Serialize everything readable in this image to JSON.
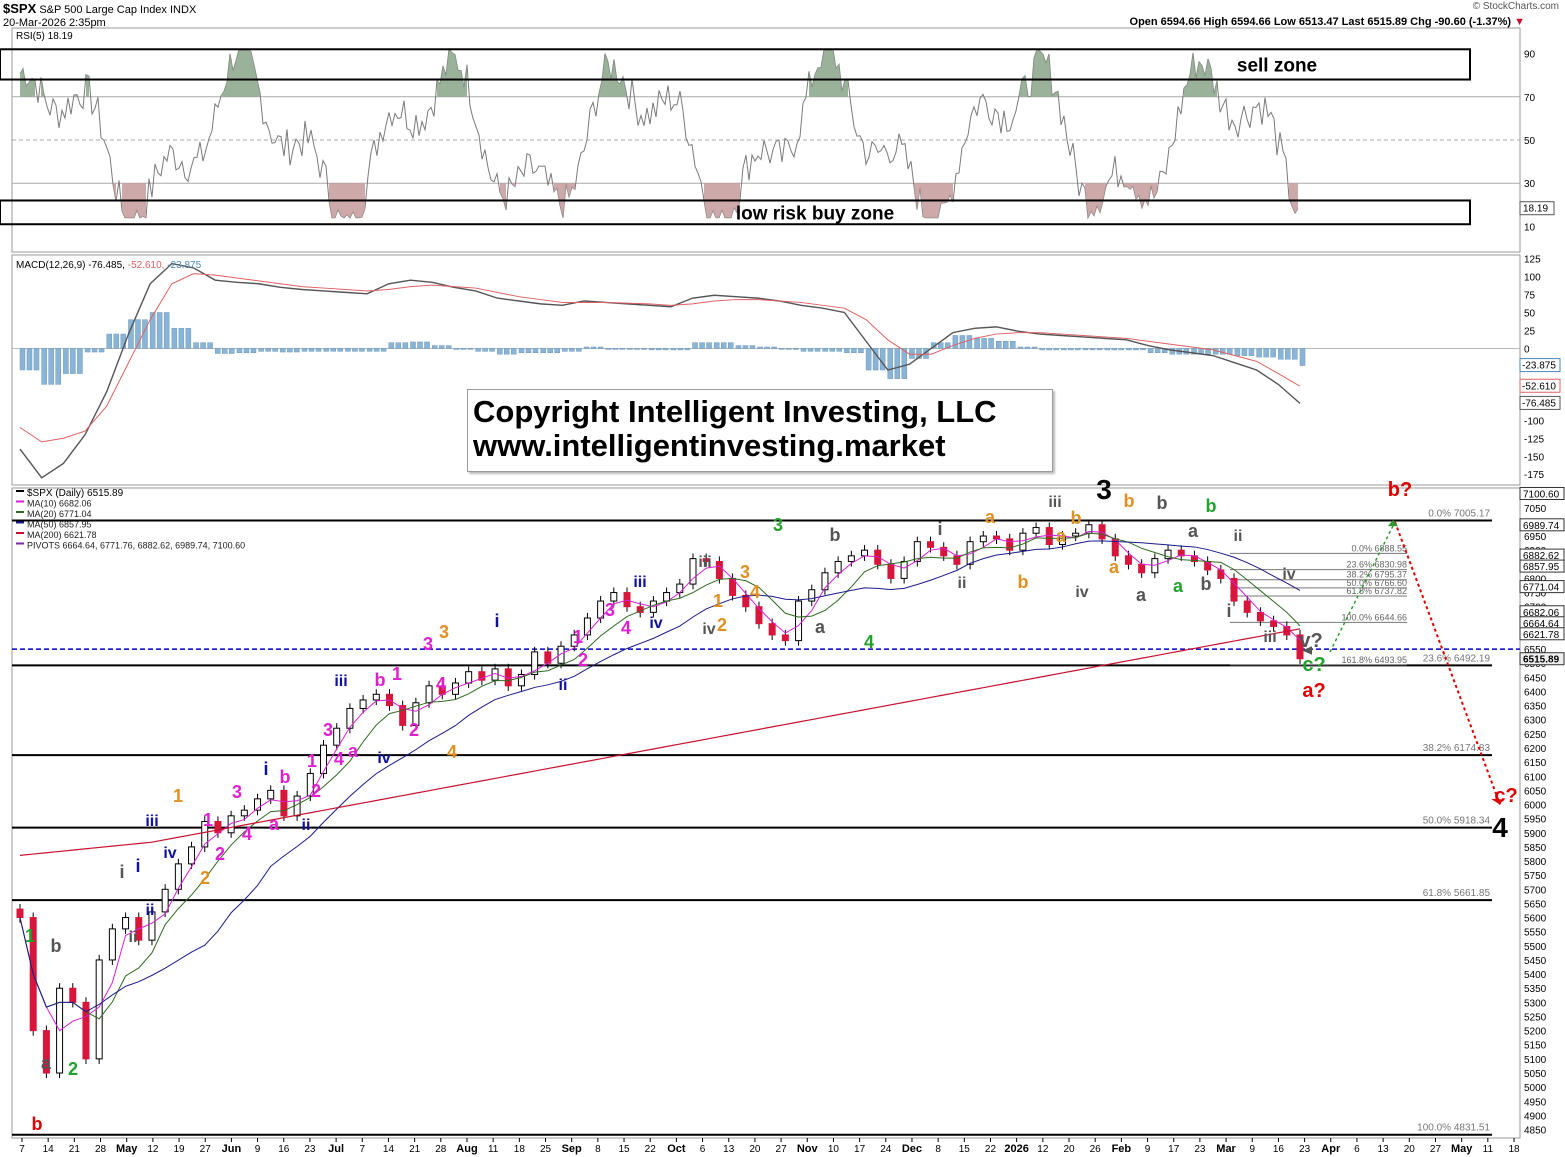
{
  "header": {
    "symbol": "$SPX",
    "name": "S&P 500 Large Cap Index",
    "exchange": "INDX",
    "date": "20-Mar-2026 2:35pm",
    "credit": "© StockCharts.com",
    "quote": "Open 6594.66  High 6594.66  Low 6513.47  Last 6515.89  Chg -90.60 (-1.37%)",
    "quote_icon": "down-triangle-icon"
  },
  "copyright": {
    "line1": "Copyright Intelligent Investing, LLC",
    "line2": "www.intelligentinvesting.market"
  },
  "colors": {
    "up": "#ffffff",
    "down": "#d8153a",
    "wick": "#000000",
    "ma10": "#d61fd6",
    "ma20": "#2e6b1e",
    "ma50": "#1a1a8c",
    "ma200": "#c8102e",
    "macd": "#555555",
    "signal": "#e06060",
    "histogram": "#8ab4d6",
    "rsi": "#7a7a7a",
    "rsi_high_fill": "#8fa88f",
    "rsi_low_fill": "#c8a0a0",
    "pivot_line": "#0000cc"
  },
  "chart_data": [
    {
      "type": "line",
      "title": "RSI(5) 18.19",
      "ylim": [
        0,
        100
      ],
      "y_ticks": [
        10,
        30,
        50,
        70,
        90
      ],
      "guide_lines": [
        70,
        50,
        30
      ],
      "last_value_label": "18.19",
      "zones": [
        {
          "label": "sell zone",
          "range": [
            78,
            92
          ]
        },
        {
          "label": "low risk buy zone",
          "range": [
            11,
            22
          ]
        }
      ]
    },
    {
      "type": "line",
      "title": "MACD(12,26,9)",
      "legend": {
        "macd": "-76.485",
        "signal": "-52.610",
        "hist": "-23.875"
      },
      "ylim": [
        -190,
        130
      ],
      "y_ticks": [
        125,
        100,
        75,
        50,
        25,
        0,
        -25,
        -50,
        -75,
        -100,
        -125,
        -150,
        -175
      ],
      "last_values": [
        "-23.875",
        "-52.610",
        "-76.485"
      ],
      "series": [
        {
          "name": "MACD",
          "values": [
            -140,
            -180,
            -160,
            -120,
            -60,
            20,
            90,
            118,
            112,
            95,
            92,
            90,
            85,
            82,
            80,
            78,
            76,
            90,
            95,
            92,
            85,
            80,
            70,
            66,
            62,
            60,
            66,
            64,
            62,
            60,
            58,
            70,
            74,
            72,
            70,
            66,
            60,
            56,
            50,
            10,
            -30,
            -22,
            0,
            22,
            28,
            30,
            24,
            20,
            18,
            16,
            14,
            12,
            4,
            -2,
            -6,
            -10,
            -20,
            -30,
            -50,
            -76.485
          ]
        },
        {
          "name": "Signal",
          "values": [
            -110,
            -130,
            -125,
            -115,
            -80,
            -20,
            40,
            90,
            104,
            102,
            98,
            94,
            90,
            86,
            84,
            82,
            80,
            82,
            86,
            88,
            86,
            84,
            78,
            72,
            68,
            64,
            64,
            64,
            63,
            62,
            60,
            62,
            66,
            68,
            68,
            66,
            64,
            60,
            56,
            40,
            12,
            -8,
            -8,
            4,
            14,
            20,
            22,
            22,
            20,
            18,
            16,
            14,
            10,
            6,
            2,
            -2,
            -10,
            -18,
            -35,
            -52.61
          ]
        },
        {
          "name": "Histogram",
          "values": [
            -30,
            -50,
            -35,
            -5,
            20,
            40,
            50,
            28,
            8,
            -7,
            -6,
            -4,
            -5,
            -4,
            -4,
            -4,
            -4,
            8,
            9,
            4,
            -1,
            -4,
            -8,
            -6,
            -6,
            -4,
            2,
            0,
            -1,
            -2,
            -2,
            8,
            8,
            4,
            2,
            0,
            -4,
            -4,
            -6,
            -30,
            -42,
            -14,
            8,
            18,
            14,
            10,
            2,
            -2,
            -2,
            -2,
            -2,
            -2,
            -6,
            -8,
            -8,
            -8,
            -10,
            -12,
            -15,
            -23.875
          ]
        }
      ]
    },
    {
      "type": "candlestick",
      "title": "$SPX (Daily) 6515.89",
      "ylim": [
        4820,
        7120
      ],
      "y_ticks": [
        4850,
        4900,
        4950,
        5000,
        5050,
        5100,
        5150,
        5200,
        5250,
        5300,
        5350,
        5400,
        5450,
        5500,
        5550,
        5600,
        5650,
        5700,
        5750,
        5800,
        5850,
        5900,
        5950,
        6000,
        6050,
        6100,
        6150,
        6200,
        6250,
        6300,
        6350,
        6400,
        6450,
        6500,
        6550,
        6600,
        6650,
        6700,
        6750,
        6800,
        6850,
        6900,
        6950,
        7000,
        7050
      ],
      "x_ticks": [
        "7",
        "14",
        "21",
        "28",
        "May",
        "12",
        "19",
        "27",
        "Jun",
        "9",
        "16",
        "23",
        "Jul",
        "7",
        "14",
        "21",
        "28",
        "Aug",
        "11",
        "18",
        "25",
        "Sep",
        "8",
        "15",
        "22",
        "Oct",
        "6",
        "13",
        "20",
        "27",
        "Nov",
        "10",
        "17",
        "24",
        "Dec",
        "8",
        "15",
        "22",
        "2026",
        "12",
        "20",
        "26",
        "Feb",
        "9",
        "17",
        "23",
        "Mar",
        "9",
        "16",
        "23",
        "Apr",
        "6",
        "13",
        "20",
        "27",
        "May",
        "11",
        "18"
      ],
      "legend": [
        {
          "label": "$SPX (Daily) 6515.89",
          "color": "#000000"
        },
        {
          "label": "MA(10) 6682.06",
          "color": "#d61fd6"
        },
        {
          "label": "MA(20) 6771.04",
          "color": "#2e6b1e"
        },
        {
          "label": "MA(50) 6857.95",
          "color": "#1a1a8c"
        },
        {
          "label": "MA(200) 6621.78",
          "color": "#c8102e"
        },
        {
          "label": "PIVOTS 6664.64, 6771.76, 6882.62, 6989.74, 7100.60",
          "color": "#7a2aa8"
        }
      ],
      "close_series": [
        5600,
        5200,
        5050,
        5350,
        5300,
        5100,
        5450,
        5560,
        5600,
        5520,
        5620,
        5700,
        5790,
        5850,
        5940,
        5900,
        5960,
        5980,
        6020,
        6050,
        5960,
        6030,
        6110,
        6210,
        6270,
        6340,
        6370,
        6390,
        6350,
        6280,
        6360,
        6420,
        6390,
        6430,
        6470,
        6440,
        6480,
        6420,
        6460,
        6540,
        6500,
        6560,
        6600,
        6660,
        6720,
        6750,
        6700,
        6680,
        6720,
        6750,
        6780,
        6870,
        6860,
        6800,
        6740,
        6700,
        6640,
        6600,
        6580,
        6720,
        6760,
        6820,
        6860,
        6880,
        6900,
        6850,
        6800,
        6860,
        6930,
        6910,
        6880,
        6850,
        6930,
        6950,
        6940,
        6900,
        6960,
        6980,
        6920,
        6950,
        6960,
        6990,
        6940,
        6880,
        6850,
        6820,
        6870,
        6900,
        6880,
        6860,
        6830,
        6800,
        6720,
        6680,
        6650,
        6630,
        6600,
        6515.89
      ],
      "fib_levels": [
        {
          "label": "0.0% 7005.17",
          "value": 7005.17
        },
        {
          "label": "23.6% 6492.19",
          "value": 6492.19
        },
        {
          "label": "38.2% 6174.83",
          "value": 6174.83
        },
        {
          "label": "50.0% 5918.34",
          "value": 5918.34
        },
        {
          "label": "61.8% 5661.85",
          "value": 5661.85
        },
        {
          "label": "100.0% 4831.51",
          "value": 4831.51
        }
      ],
      "inner_fib_levels": [
        {
          "label": "0.0% 6888.55",
          "value": 6888.55
        },
        {
          "label": "23.6% 6830.98",
          "value": 6830.98
        },
        {
          "label": "38.2% 6795.37",
          "value": 6795.37
        },
        {
          "label": "50.0% 6766.60",
          "value": 6766.6
        },
        {
          "label": "61.8% 6737.82",
          "value": 6737.82
        },
        {
          "label": "100.0% 6644.66",
          "value": 6644.66
        },
        {
          "label": "161.8% 6493.95",
          "value": 6493.95
        }
      ],
      "pivot_line": 6550,
      "right_labels": [
        {
          "label": "7100.60",
          "value": 7100.6
        },
        {
          "label": "6989.74",
          "value": 6989.74
        },
        {
          "label": "6882.62",
          "value": 6882.62
        },
        {
          "label": "6857.95",
          "value": 6857.95
        },
        {
          "label": "6771.04",
          "value": 6771.04
        },
        {
          "label": "6682.06",
          "value": 6682.06
        },
        {
          "label": "6664.64",
          "value": 6664.64
        },
        {
          "label": "6621.78",
          "value": 6621.78
        },
        {
          "label": "6515.89",
          "value": 6515.89
        }
      ],
      "annotations": [
        {
          "text": "1",
          "color": "#22a12e",
          "x": 30,
          "y": 942
        },
        {
          "text": "b",
          "color": "#555555",
          "x": 56,
          "y": 952
        },
        {
          "text": "2",
          "color": "#22a12e",
          "x": 73,
          "y": 1075
        },
        {
          "text": "a",
          "color": "#555555",
          "x": 46,
          "y": 1069
        },
        {
          "text": "b",
          "color": "#e00000",
          "x": 37,
          "y": 1130
        },
        {
          "text": "i",
          "color": "#555555",
          "x": 122,
          "y": 878
        },
        {
          "text": "ii",
          "color": "#555555",
          "x": 133,
          "y": 942
        },
        {
          "text": "i",
          "color": "#1010a0",
          "x": 138,
          "y": 872
        },
        {
          "text": "ii",
          "color": "#1010a0",
          "x": 150,
          "y": 915
        },
        {
          "text": "iii",
          "color": "#1010a0",
          "x": 152,
          "y": 826
        },
        {
          "text": "iv",
          "color": "#1010a0",
          "x": 170,
          "y": 858
        },
        {
          "text": "1",
          "color": "#e09020",
          "x": 178,
          "y": 802
        },
        {
          "text": "2",
          "color": "#e09020",
          "x": 205,
          "y": 884
        },
        {
          "text": "1",
          "color": "#e020d0",
          "x": 208,
          "y": 826
        },
        {
          "text": "2",
          "color": "#e020d0",
          "x": 220,
          "y": 860
        },
        {
          "text": "3",
          "color": "#e020d0",
          "x": 237,
          "y": 798
        },
        {
          "text": "4",
          "color": "#e020d0",
          "x": 247,
          "y": 840
        },
        {
          "text": "b",
          "color": "#e020d0",
          "x": 285,
          "y": 783
        },
        {
          "text": "a",
          "color": "#e020d0",
          "x": 274,
          "y": 830
        },
        {
          "text": "i",
          "color": "#1010a0",
          "x": 266,
          "y": 775
        },
        {
          "text": "ii",
          "color": "#1010a0",
          "x": 306,
          "y": 830
        },
        {
          "text": "2",
          "color": "#e020d0",
          "x": 316,
          "y": 797
        },
        {
          "text": "1",
          "color": "#e020d0",
          "x": 312,
          "y": 767
        },
        {
          "text": "3",
          "color": "#e020d0",
          "x": 328,
          "y": 736
        },
        {
          "text": "4",
          "color": "#e020d0",
          "x": 339,
          "y": 765
        },
        {
          "text": "a",
          "color": "#e020d0",
          "x": 353,
          "y": 757
        },
        {
          "text": "iii",
          "color": "#1010a0",
          "x": 341,
          "y": 686
        },
        {
          "text": "iv",
          "color": "#1010a0",
          "x": 384,
          "y": 763
        },
        {
          "text": "b",
          "color": "#e020d0",
          "x": 380,
          "y": 686
        },
        {
          "text": "1",
          "color": "#e020d0",
          "x": 397,
          "y": 680
        },
        {
          "text": "2",
          "color": "#e020d0",
          "x": 414,
          "y": 736
        },
        {
          "text": "3",
          "color": "#e020d0",
          "x": 428,
          "y": 650
        },
        {
          "text": "4",
          "color": "#e020d0",
          "x": 441,
          "y": 690
        },
        {
          "text": "3",
          "color": "#e09020",
          "x": 444,
          "y": 638
        },
        {
          "text": "4",
          "color": "#e09020",
          "x": 452,
          "y": 758
        },
        {
          "text": "i",
          "color": "#1010a0",
          "x": 497,
          "y": 627
        },
        {
          "text": "1",
          "color": "#e020d0",
          "x": 578,
          "y": 643
        },
        {
          "text": "2",
          "color": "#e020d0",
          "x": 583,
          "y": 666
        },
        {
          "text": "ii",
          "color": "#1010a0",
          "x": 563,
          "y": 690
        },
        {
          "text": "3",
          "color": "#e020d0",
          "x": 610,
          "y": 616
        },
        {
          "text": "4",
          "color": "#e020d0",
          "x": 626,
          "y": 634
        },
        {
          "text": "iii",
          "color": "#1010a0",
          "x": 640,
          "y": 587
        },
        {
          "text": "iv",
          "color": "#1010a0",
          "x": 656,
          "y": 628
        },
        {
          "text": "iii",
          "color": "#555555",
          "x": 705,
          "y": 567
        },
        {
          "text": "iv",
          "color": "#555555",
          "x": 709,
          "y": 634
        },
        {
          "text": "1",
          "color": "#e09020",
          "x": 718,
          "y": 607
        },
        {
          "text": "2",
          "color": "#e09020",
          "x": 722,
          "y": 631
        },
        {
          "text": "3",
          "color": "#e09020",
          "x": 745,
          "y": 578
        },
        {
          "text": "4",
          "color": "#e09020",
          "x": 755,
          "y": 598
        },
        {
          "text": "3",
          "color": "#22a12e",
          "x": 778,
          "y": 531
        },
        {
          "text": "b",
          "color": "#555555",
          "x": 835,
          "y": 541
        },
        {
          "text": "a",
          "color": "#555555",
          "x": 820,
          "y": 633
        },
        {
          "text": "4",
          "color": "#22a12e",
          "x": 869,
          "y": 648
        },
        {
          "text": "i",
          "color": "#555555",
          "x": 940,
          "y": 535
        },
        {
          "text": "ii",
          "color": "#555555",
          "x": 962,
          "y": 588
        },
        {
          "text": "a",
          "color": "#e09020",
          "x": 990,
          "y": 523
        },
        {
          "text": "b",
          "color": "#e09020",
          "x": 1023,
          "y": 588
        },
        {
          "text": "iii",
          "color": "#555555",
          "x": 1055,
          "y": 507
        },
        {
          "text": "a",
          "color": "#e09020",
          "x": 1061,
          "y": 542
        },
        {
          "text": "iv",
          "color": "#555555",
          "x": 1082,
          "y": 597
        },
        {
          "text": "b",
          "color": "#e09020",
          "x": 1076,
          "y": 524
        },
        {
          "text": "3",
          "color": "#000000",
          "x": 1104,
          "y": 499
        },
        {
          "text": "b",
          "color": "#e09020",
          "x": 1129,
          "y": 507
        },
        {
          "text": "a",
          "color": "#e09020",
          "x": 1114,
          "y": 573
        },
        {
          "text": "b",
          "color": "#555555",
          "x": 1162,
          "y": 509
        },
        {
          "text": "a",
          "color": "#555555",
          "x": 1141,
          "y": 601
        },
        {
          "text": "a",
          "color": "#555555",
          "x": 1193,
          "y": 537
        },
        {
          "text": "a",
          "color": "#22a12e",
          "x": 1178,
          "y": 592
        },
        {
          "text": "b",
          "color": "#22a12e",
          "x": 1211,
          "y": 512
        },
        {
          "text": "b",
          "color": "#555555",
          "x": 1206,
          "y": 590
        },
        {
          "text": "ii",
          "color": "#555555",
          "x": 1238,
          "y": 541
        },
        {
          "text": "i",
          "color": "#555555",
          "x": 1229,
          "y": 617
        },
        {
          "text": "iv",
          "color": "#555555",
          "x": 1289,
          "y": 579
        },
        {
          "text": "iii",
          "color": "#555555",
          "x": 1270,
          "y": 642
        },
        {
          "text": "v?",
          "color": "#555555",
          "x": 1311,
          "y": 647
        },
        {
          "text": "c?",
          "color": "#22a12e",
          "x": 1314,
          "y": 671
        },
        {
          "text": "a?",
          "color": "#e00000",
          "x": 1314,
          "y": 697
        },
        {
          "text": "b?",
          "color": "#e00000",
          "x": 1400,
          "y": 496
        },
        {
          "text": "c?",
          "color": "#e00000",
          "x": 1506,
          "y": 802
        },
        {
          "text": "4",
          "color": "#000000",
          "x": 1500,
          "y": 837
        }
      ]
    }
  ]
}
